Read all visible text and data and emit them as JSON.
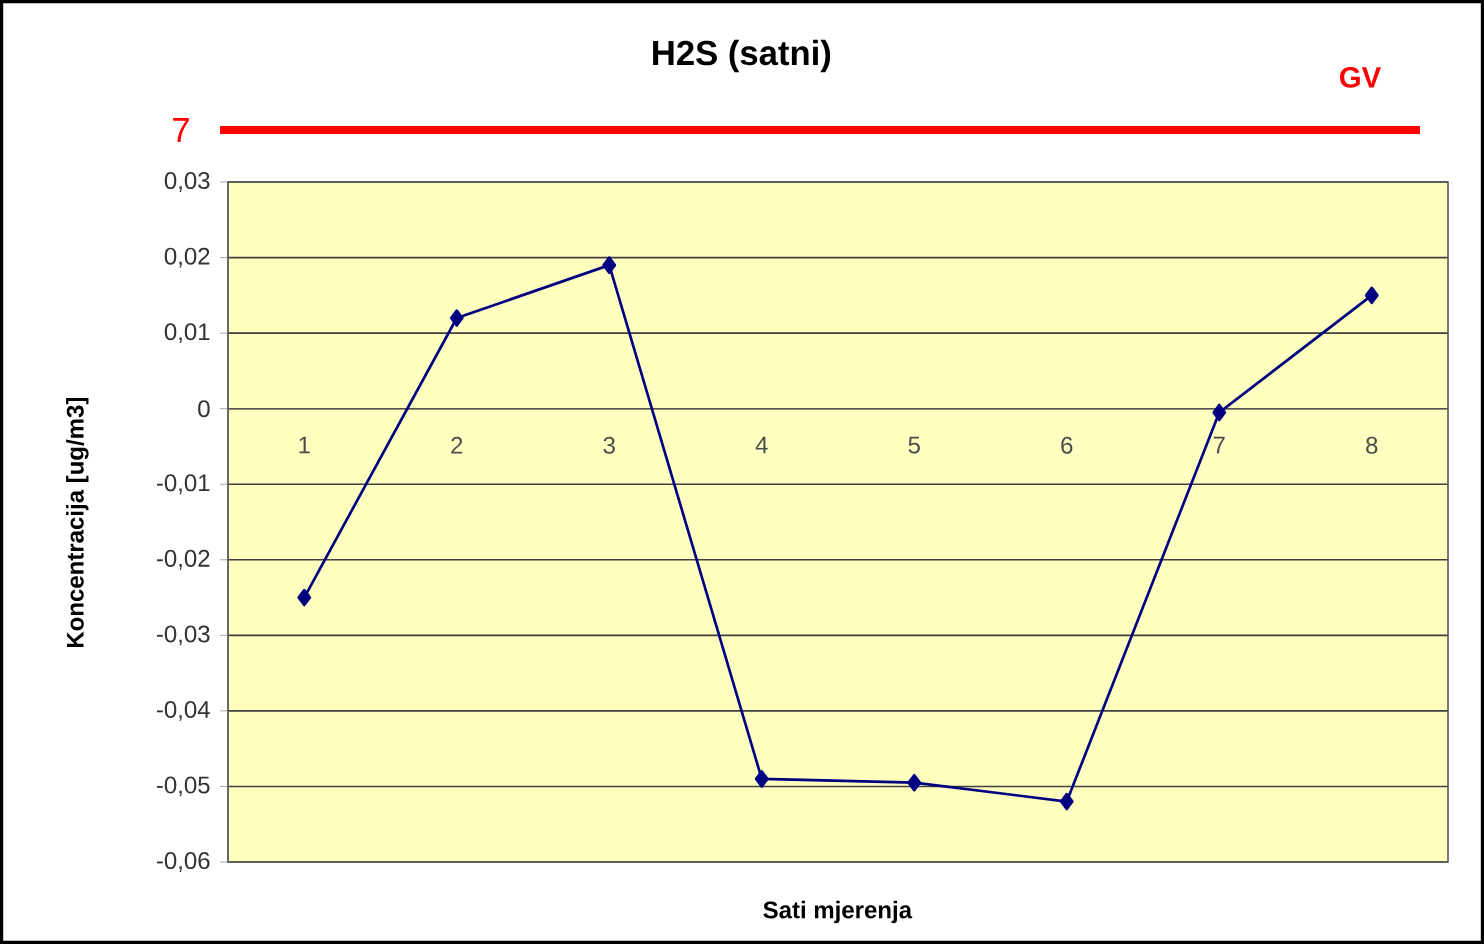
{
  "chart_data": {
    "type": "line",
    "title": "H2S (satni)",
    "xlabel": "Sati mjerenja",
    "ylabel": "Koncentracija [ug/m3]",
    "annotations": [
      "7",
      "GV"
    ],
    "categories": [
      "1",
      "2",
      "3",
      "4",
      "5",
      "6",
      "7",
      "8"
    ],
    "series": [
      {
        "color": "#000080",
        "values": [
          -0.025,
          0.012,
          0.019,
          -0.049,
          -0.0495,
          -0.052,
          -0.0005,
          0.015
        ]
      }
    ],
    "ylim": [
      -0.06,
      0.03
    ],
    "yticks": [
      {
        "value": -0.06,
        "label": "-0,06"
      },
      {
        "value": -0.05,
        "label": "-0,05"
      },
      {
        "value": -0.04,
        "label": "-0,04"
      },
      {
        "value": -0.03,
        "label": "-0,03"
      },
      {
        "value": -0.02,
        "label": "-0,02"
      },
      {
        "value": -0.01,
        "label": "-0,01"
      },
      0,
      {
        "value": 0.01,
        "label": "0,01"
      },
      {
        "value": 0.02,
        "label": "0,02"
      },
      {
        "value": 0.03,
        "label": "0,03"
      }
    ],
    "grid": "y",
    "marker": "diamond",
    "line_style": "solid"
  }
}
